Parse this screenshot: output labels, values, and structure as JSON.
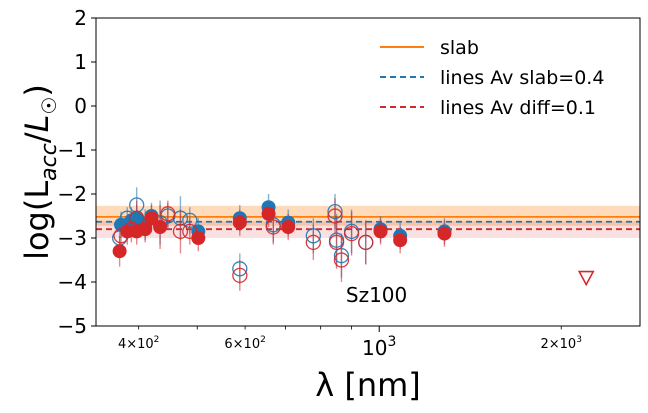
{
  "chart_data": {
    "type": "scatter",
    "title": "",
    "annotation": "Sz100",
    "xlabel": "λ [nm]",
    "ylabel": "log(L_acc/L☉)",
    "xscale": "log",
    "xlim": [
      340,
      2700
    ],
    "ylim": [
      -5,
      2
    ],
    "y_ticks": [
      2,
      1,
      0,
      -1,
      -2,
      -3,
      -4,
      -5
    ],
    "y_tick_labels": [
      "2",
      "1",
      "0",
      "−1",
      "−2",
      "−3",
      "−4",
      "−5"
    ],
    "x_ticks_major": [
      {
        "value": 1000,
        "base": "10",
        "exp": "3"
      }
    ],
    "x_ticks_minor": [
      {
        "value": 400,
        "mantissa": "4",
        "base": "10",
        "exp": "2"
      },
      {
        "value": 600,
        "mantissa": "6",
        "base": "10",
        "exp": "2"
      },
      {
        "value": 2000,
        "mantissa": "2",
        "base": "10",
        "exp": "3"
      }
    ],
    "legend": {
      "placement": "top-right",
      "entries": [
        {
          "label": "slab",
          "style": "solid",
          "color": "#ff7f0e"
        },
        {
          "label": "lines Av slab=0.4",
          "style": "dashed",
          "color": "#1f77b4"
        },
        {
          "label": "lines Av diff=0.1",
          "style": "dashed",
          "color": "#d62728"
        }
      ]
    },
    "slab": {
      "value": -2.52,
      "band": [
        -2.72,
        -2.27
      ],
      "color": "#ff7f0e"
    },
    "lines_av_slab": {
      "value": -2.63,
      "color": "#1f77b4"
    },
    "lines_av_diff": {
      "value": -2.8,
      "band": [
        -3.0,
        -2.62
      ],
      "color": "#d62728"
    },
    "series": [
      {
        "name": "lines Av slab=0.4",
        "color": "#1f77b4",
        "points": [
          {
            "x": 372,
            "y": -3.0,
            "err": 0.3,
            "open": true
          },
          {
            "x": 374,
            "y": -2.7,
            "err": 0.3,
            "open": false
          },
          {
            "x": 383,
            "y": -2.55,
            "err": 0.25,
            "open": true
          },
          {
            "x": 389,
            "y": -2.6,
            "err": 0.3,
            "open": false
          },
          {
            "x": 397,
            "y": -2.25,
            "err": 0.4,
            "open": true
          },
          {
            "x": 397,
            "y": -2.55,
            "err": 0.3,
            "open": false
          },
          {
            "x": 410,
            "y": -2.7,
            "err": 0.35,
            "open": false
          },
          {
            "x": 420,
            "y": -2.5,
            "err": 0.3,
            "open": false
          },
          {
            "x": 434,
            "y": -2.65,
            "err": 0.5,
            "open": true
          },
          {
            "x": 447,
            "y": -2.5,
            "err": 0.3,
            "open": true
          },
          {
            "x": 469,
            "y": -2.55,
            "err": 0.5,
            "open": true
          },
          {
            "x": 486,
            "y": -2.6,
            "err": 0.3,
            "open": true
          },
          {
            "x": 502,
            "y": -2.85,
            "err": 0.3,
            "open": false
          },
          {
            "x": 588,
            "y": -2.55,
            "err": 0.3,
            "open": false
          },
          {
            "x": 588,
            "y": -3.7,
            "err": 0.35,
            "open": true
          },
          {
            "x": 656,
            "y": -2.3,
            "err": 0.3,
            "open": false
          },
          {
            "x": 668,
            "y": -2.7,
            "err": 0.4,
            "open": true
          },
          {
            "x": 707,
            "y": -2.65,
            "err": 0.3,
            "open": false
          },
          {
            "x": 778,
            "y": -2.95,
            "err": 0.4,
            "open": true
          },
          {
            "x": 845,
            "y": -2.4,
            "err": 0.4,
            "open": true
          },
          {
            "x": 850,
            "y": -3.05,
            "err": 0.6,
            "open": true
          },
          {
            "x": 866,
            "y": -3.4,
            "err": 0.5,
            "open": true
          },
          {
            "x": 900,
            "y": -2.85,
            "err": 0.5,
            "open": true
          },
          {
            "x": 950,
            "y": -3.1,
            "err": 0.5,
            "open": true
          },
          {
            "x": 1005,
            "y": -2.8,
            "err": 0.3,
            "open": false
          },
          {
            "x": 1083,
            "y": -2.95,
            "err": 0.3,
            "open": false
          },
          {
            "x": 1282,
            "y": -2.85,
            "err": 0.3,
            "open": false
          }
        ]
      },
      {
        "name": "lines Av diff=0.1",
        "color": "#d62728",
        "points": [
          {
            "x": 372,
            "y": -3.3,
            "err": 0.35,
            "open": false
          },
          {
            "x": 374,
            "y": -2.95,
            "err": 0.3,
            "open": true
          },
          {
            "x": 383,
            "y": -2.85,
            "err": 0.3,
            "open": false
          },
          {
            "x": 389,
            "y": -2.8,
            "err": 0.3,
            "open": true
          },
          {
            "x": 397,
            "y": -2.55,
            "err": 0.4,
            "open": true
          },
          {
            "x": 397,
            "y": -2.85,
            "err": 0.3,
            "open": false
          },
          {
            "x": 410,
            "y": -2.8,
            "err": 0.3,
            "open": false
          },
          {
            "x": 420,
            "y": -2.55,
            "err": 0.3,
            "open": false
          },
          {
            "x": 434,
            "y": -2.75,
            "err": 0.5,
            "open": false
          },
          {
            "x": 447,
            "y": -2.45,
            "err": 0.3,
            "open": true
          },
          {
            "x": 469,
            "y": -2.85,
            "err": 0.5,
            "open": true
          },
          {
            "x": 486,
            "y": -2.85,
            "err": 0.3,
            "open": true
          },
          {
            "x": 502,
            "y": -3.0,
            "err": 0.3,
            "open": false
          },
          {
            "x": 588,
            "y": -2.65,
            "err": 0.3,
            "open": false
          },
          {
            "x": 588,
            "y": -3.85,
            "err": 0.35,
            "open": true
          },
          {
            "x": 656,
            "y": -2.45,
            "err": 0.3,
            "open": false
          },
          {
            "x": 668,
            "y": -2.75,
            "err": 0.4,
            "open": true
          },
          {
            "x": 707,
            "y": -2.75,
            "err": 0.3,
            "open": false
          },
          {
            "x": 778,
            "y": -3.1,
            "err": 0.4,
            "open": true
          },
          {
            "x": 845,
            "y": -2.5,
            "err": 0.4,
            "open": true
          },
          {
            "x": 850,
            "y": -3.1,
            "err": 0.6,
            "open": true
          },
          {
            "x": 866,
            "y": -3.5,
            "err": 0.5,
            "open": true
          },
          {
            "x": 900,
            "y": -2.9,
            "err": 0.5,
            "open": true
          },
          {
            "x": 950,
            "y": -3.1,
            "err": 0.5,
            "open": true
          },
          {
            "x": 1005,
            "y": -2.85,
            "err": 0.3,
            "open": false
          },
          {
            "x": 1083,
            "y": -3.05,
            "err": 0.3,
            "open": false
          },
          {
            "x": 1282,
            "y": -2.9,
            "err": 0.3,
            "open": false
          }
        ]
      }
    ],
    "upper_limit": {
      "x": 2200,
      "y": -3.9,
      "marker": "open-triangle-down",
      "color": "#d62728"
    }
  }
}
